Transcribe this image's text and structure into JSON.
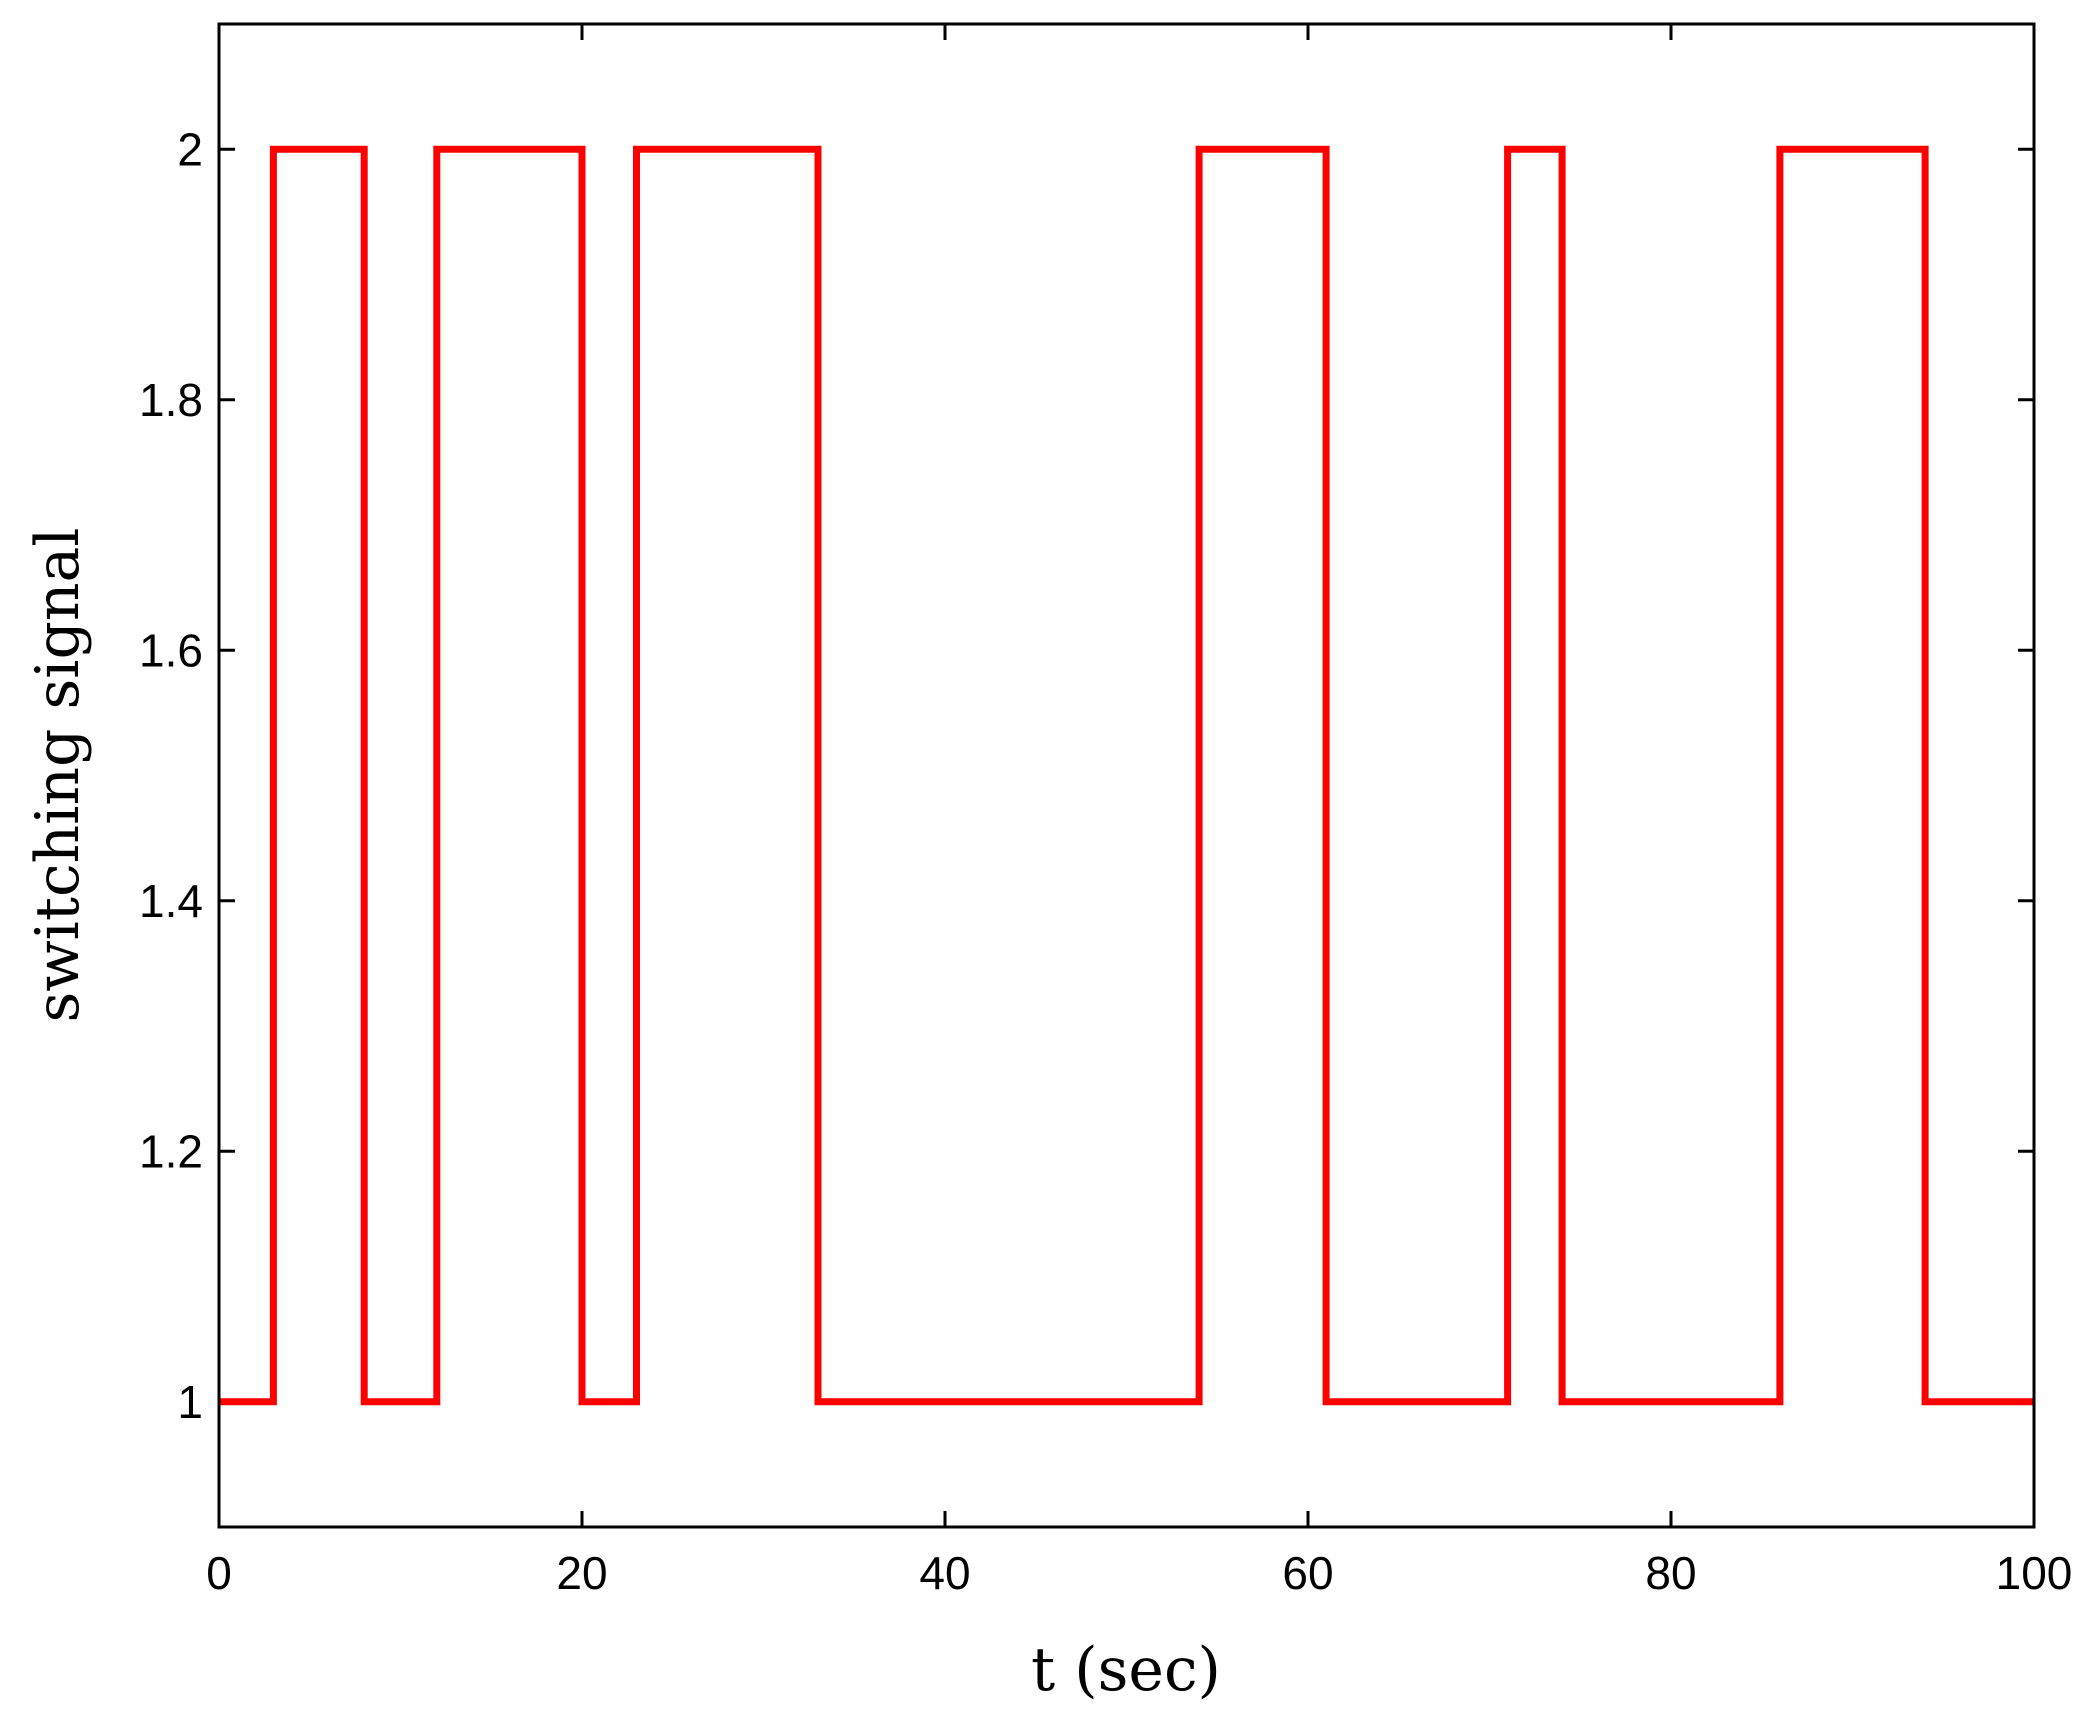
{
  "chart_data": {
    "type": "line",
    "step": true,
    "title": "",
    "xlabel": "t (sec)",
    "ylabel": "switching signal",
    "xlim": [
      0,
      100
    ],
    "ylim": [
      0.9,
      2.1
    ],
    "grid": false,
    "x_ticks": [
      0,
      20,
      40,
      60,
      80,
      100
    ],
    "x_tick_labels": [
      "0",
      "20",
      "40",
      "60",
      "80",
      "100"
    ],
    "y_ticks": [
      1,
      1.2,
      1.4,
      1.6,
      1.8,
      2
    ],
    "y_tick_labels": [
      "1",
      "1.2",
      "1.4",
      "1.6",
      "1.8",
      "2"
    ],
    "series": [
      {
        "color": "#ff0000",
        "x": [
          0,
          3,
          3,
          8,
          8,
          12,
          12,
          20,
          20,
          23,
          23,
          33,
          33,
          54,
          54,
          61,
          61,
          71,
          71,
          74,
          74,
          86,
          86,
          94,
          94,
          100
        ],
        "y": [
          1,
          1,
          2,
          2,
          1,
          1,
          2,
          2,
          1,
          1,
          2,
          2,
          1,
          1,
          2,
          2,
          1,
          1,
          2,
          2,
          1,
          1,
          2,
          2,
          1,
          1
        ]
      }
    ]
  }
}
